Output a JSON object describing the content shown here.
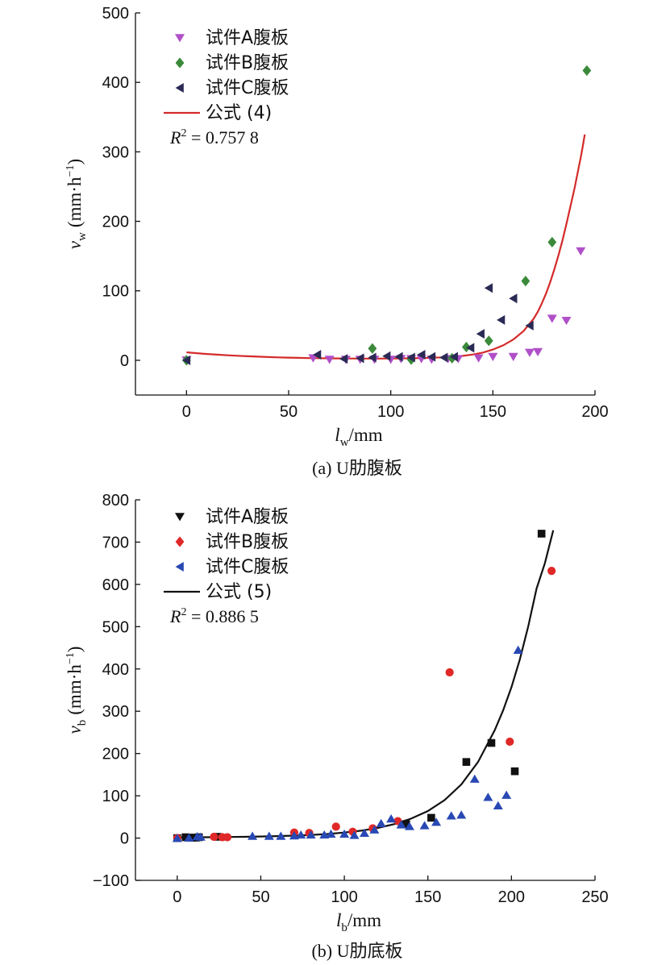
{
  "chart_data": [
    {
      "type": "scatter",
      "xlim": [
        -25,
        200
      ],
      "ylim": [
        -50,
        500
      ],
      "xticks": [
        0,
        50,
        100,
        150,
        200
      ],
      "yticks": [
        0,
        100,
        200,
        300,
        400,
        500
      ],
      "xlabel_symbol": "l",
      "xlabel_sub": "w",
      "xlabel_unit": "/mm",
      "ylabel_symbol": "v",
      "ylabel_sub": "w",
      "ylabel_unit": "(mm·h",
      "ylabel_unit_sup": "−1",
      "ylabel_unit_close": ")",
      "caption": "(a) U肋腹板",
      "legend_position": "top-left",
      "r2_symbol": "R",
      "r2_sup": "2",
      "r2_value": " = 0.757 8",
      "series": [
        {
          "name": "试件A腹板",
          "marker": "triangle-down",
          "color": "#b04fc8",
          "points": [
            [
              0,
              0
            ],
            [
              62,
              3
            ],
            [
              70,
              1
            ],
            [
              78,
              1
            ],
            [
              85,
              1
            ],
            [
              92,
              1
            ],
            [
              100,
              1
            ],
            [
              105,
              2
            ],
            [
              110,
              2
            ],
            [
              115,
              2
            ],
            [
              120,
              1
            ],
            [
              128,
              2
            ],
            [
              133,
              2
            ],
            [
              143,
              3
            ],
            [
              150,
              5
            ],
            [
              160,
              5
            ],
            [
              168,
              11
            ],
            [
              172,
              12
            ],
            [
              179,
              60
            ],
            [
              186,
              57
            ],
            [
              193,
              157
            ]
          ]
        },
        {
          "name": "试件B腹板",
          "marker": "diamond",
          "color": "#3a8a3a",
          "points": [
            [
              0,
              0
            ],
            [
              91,
              17
            ],
            [
              110,
              1
            ],
            [
              130,
              3
            ],
            [
              137,
              19
            ],
            [
              148,
              28
            ],
            [
              166,
              114
            ],
            [
              179,
              170
            ],
            [
              196,
              417
            ]
          ]
        },
        {
          "name": "试件C腹板",
          "marker": "triangle-left",
          "color": "#2a2a55",
          "points": [
            [
              0,
              0
            ],
            [
              64,
              8
            ],
            [
              77,
              2
            ],
            [
              85,
              3
            ],
            [
              91,
              4
            ],
            [
              98,
              6
            ],
            [
              104,
              5
            ],
            [
              110,
              4
            ],
            [
              115,
              8
            ],
            [
              120,
              5
            ],
            [
              126,
              4
            ],
            [
              131,
              5
            ],
            [
              139,
              18
            ],
            [
              144,
              38
            ],
            [
              148,
              104
            ],
            [
              154,
              58
            ],
            [
              160,
              89
            ],
            [
              168,
              50
            ]
          ]
        }
      ],
      "fit": {
        "name": "公式 (4)",
        "color": "#d42a2a",
        "x": [
          0,
          5,
          10,
          15,
          20,
          25,
          30,
          35,
          40,
          45,
          50,
          55,
          60,
          65,
          70,
          75,
          80,
          85,
          90,
          95,
          100,
          105,
          110,
          115,
          120,
          125,
          130,
          135,
          140,
          145,
          150,
          155,
          160,
          165,
          170,
          172,
          174,
          176,
          178,
          180,
          182,
          184,
          186,
          188,
          190,
          192,
          193,
          194,
          195
        ],
        "y": [
          11.5,
          10.2,
          9.1,
          8.1,
          7.2,
          6.5,
          5.8,
          5.2,
          4.7,
          4.2,
          3.8,
          3.5,
          3.2,
          3.0,
          2.8,
          2.7,
          2.6,
          2.5,
          2.5,
          2.5,
          2.6,
          2.7,
          2.9,
          3.2,
          3.6,
          4.2,
          5,
          6.3,
          8.2,
          11,
          15.5,
          21.5,
          30,
          42,
          60,
          70,
          82,
          96,
          112,
          130,
          150,
          172,
          196,
          222,
          248,
          277,
          292,
          308,
          325
        ]
      }
    },
    {
      "type": "scatter",
      "xlim": [
        -25,
        250
      ],
      "ylim": [
        -100,
        800
      ],
      "xticks": [
        0,
        50,
        100,
        150,
        200,
        250
      ],
      "yticks": [
        -100,
        0,
        100,
        200,
        300,
        400,
        500,
        600,
        700,
        800
      ],
      "xlabel_symbol": "l",
      "xlabel_sub": "b",
      "xlabel_unit": "/mm",
      "ylabel_symbol": "v",
      "ylabel_sub": "b",
      "ylabel_unit": "(mm·h",
      "ylabel_unit_sup": "−1",
      "ylabel_unit_close": ")",
      "caption": "(b) U肋底板",
      "legend_position": "top-left",
      "r2_symbol": "R",
      "r2_sup": "2",
      "r2_value": " = 0.886 5",
      "series": [
        {
          "name": "试件A腹板",
          "marker": "triangle-down",
          "legend_marker": "triangle-down",
          "point_marker": "square",
          "color": "#111111",
          "points": [
            [
              0,
              0
            ],
            [
              5,
              2
            ],
            [
              7,
              1
            ],
            [
              9,
              1
            ],
            [
              11,
              1
            ],
            [
              13,
              2
            ],
            [
              24,
              3
            ],
            [
              137,
              33
            ],
            [
              152,
              48
            ],
            [
              173,
              180
            ],
            [
              188,
              225
            ],
            [
              202,
              158
            ],
            [
              218,
              720
            ]
          ]
        },
        {
          "name": "试件B腹板",
          "marker": "diamond",
          "legend_marker": "diamond",
          "point_marker": "circle",
          "color": "#e02828",
          "points": [
            [
              0,
              0
            ],
            [
              22,
              3
            ],
            [
              27,
              2
            ],
            [
              30,
              2
            ],
            [
              70,
              13
            ],
            [
              79,
              12
            ],
            [
              95,
              27
            ],
            [
              105,
              15
            ],
            [
              117,
              23
            ],
            [
              132,
              40
            ],
            [
              163,
              392
            ],
            [
              199,
              228
            ],
            [
              224,
              632
            ]
          ]
        },
        {
          "name": "试件C腹板",
          "marker": "triangle-left",
          "legend_marker": "triangle-left",
          "point_marker": "triangle-up",
          "color": "#2848b4",
          "points": [
            [
              0,
              0
            ],
            [
              7,
              1
            ],
            [
              12,
              4
            ],
            [
              14,
              3
            ],
            [
              45,
              5
            ],
            [
              55,
              5
            ],
            [
              62,
              5
            ],
            [
              70,
              6
            ],
            [
              74,
              8
            ],
            [
              80,
              8
            ],
            [
              88,
              8
            ],
            [
              92,
              10
            ],
            [
              100,
              10
            ],
            [
              106,
              7
            ],
            [
              112,
              12
            ],
            [
              118,
              20
            ],
            [
              122,
              35
            ],
            [
              128,
              46
            ],
            [
              134,
              32
            ],
            [
              139,
              28
            ],
            [
              148,
              30
            ],
            [
              155,
              38
            ],
            [
              164,
              53
            ],
            [
              170,
              55
            ],
            [
              178,
              140
            ],
            [
              186,
              97
            ],
            [
              192,
              77
            ],
            [
              197,
              102
            ],
            [
              204,
              445
            ]
          ]
        }
      ],
      "fit": {
        "name": "公式 (5)",
        "color": "#111111",
        "x": [
          0,
          10,
          20,
          30,
          40,
          50,
          60,
          70,
          80,
          90,
          100,
          110,
          120,
          130,
          140,
          150,
          160,
          170,
          180,
          190,
          195,
          200,
          205,
          210,
          215,
          220,
          225
        ],
        "y": [
          1.5,
          1.8,
          2.1,
          2.5,
          3,
          3.7,
          4.6,
          5.8,
          7.4,
          9.7,
          13,
          17.5,
          24,
          33,
          46,
          64,
          90,
          127,
          180,
          255,
          302,
          357,
          422,
          500,
          590,
          650,
          728
        ]
      }
    }
  ]
}
